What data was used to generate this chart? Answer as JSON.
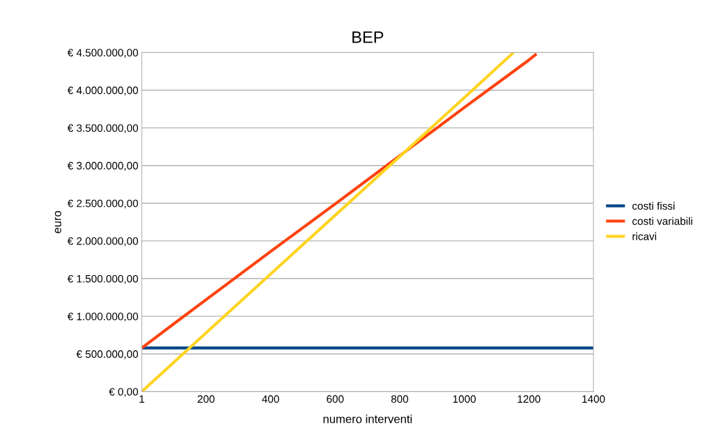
{
  "chart_data": {
    "type": "line",
    "title": "BEP",
    "xlabel": "numero interventi",
    "ylabel": "euro",
    "xlim": [
      1,
      1400
    ],
    "xticks": [
      1,
      200,
      400,
      600,
      800,
      1000,
      1200,
      1400
    ],
    "ylim": [
      0,
      4500000
    ],
    "yticks": [
      {
        "value": 0,
        "label": "€ 0,00"
      },
      {
        "value": 500000,
        "label": "€ 500.000,00"
      },
      {
        "value": 1000000,
        "label": "€ 1.000.000,00"
      },
      {
        "value": 1500000,
        "label": "€ 1.500.000,00"
      },
      {
        "value": 2000000,
        "label": "€ 2.000.000,00"
      },
      {
        "value": 2500000,
        "label": "€ 2.500.000,00"
      },
      {
        "value": 3000000,
        "label": "€ 3.000.000,00"
      },
      {
        "value": 3500000,
        "label": "€ 3.500.000,00"
      },
      {
        "value": 4000000,
        "label": "€ 4.000.000,00"
      },
      {
        "value": 4500000,
        "label": "€ 4.500.000,00"
      }
    ],
    "grid": "y",
    "legend": "right",
    "marker": "none",
    "line_style": "solid",
    "series": [
      {
        "name": "costi fissi",
        "color": "#004586",
        "x": [
          1,
          200,
          400,
          600,
          800,
          1000,
          1200,
          1400
        ],
        "values": [
          580000,
          580000,
          580000,
          580000,
          580000,
          580000,
          580000,
          580000
        ]
      },
      {
        "name": "costi variabili",
        "color": "#ff420e",
        "x": [
          1,
          200,
          400,
          600,
          800,
          1000,
          1200,
          1220
        ],
        "values": [
          580000,
          1220000,
          1860000,
          2490000,
          3130000,
          3770000,
          4400000,
          4470000
        ]
      },
      {
        "name": "ricavi",
        "color": "#ffd320",
        "x": [
          1,
          200,
          400,
          600,
          800,
          1000,
          1150
        ],
        "values": [
          0,
          780000,
          1560000,
          2340000,
          3120000,
          3900000,
          4490000
        ]
      }
    ]
  }
}
